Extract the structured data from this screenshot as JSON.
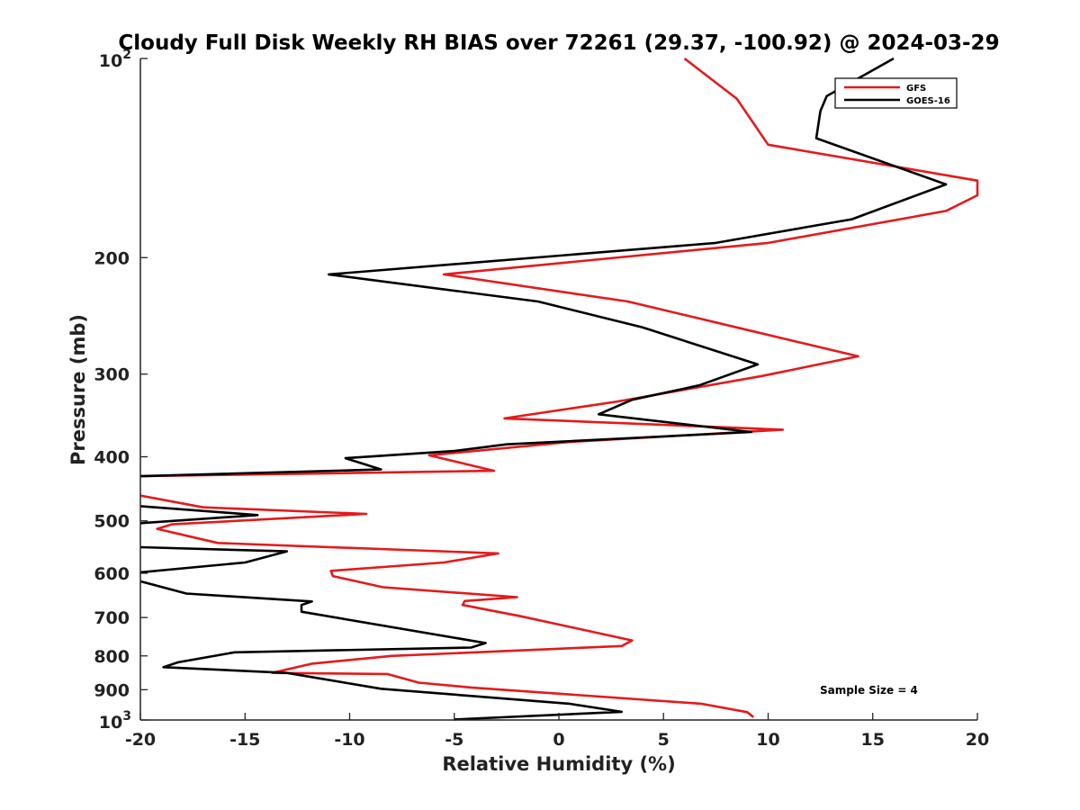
{
  "chart_data": {
    "type": "line",
    "title": "Cloudy Full Disk Weekly RH BIAS over 72261 (29.37, -100.92) @ 2024-03-29",
    "xlabel": "Relative Humidity (%)",
    "ylabel": "Pressure (mb)",
    "xlim": [
      -20,
      20
    ],
    "ylim": [
      100,
      1000
    ],
    "y_scale": "log",
    "y_reversed": true,
    "grid": false,
    "legend_placement": "top-right",
    "x_ticks": [
      "-20",
      "-15",
      "-10",
      "-5",
      "0",
      "5",
      "10",
      "15",
      "20"
    ],
    "y_ticks": [
      {
        "value": 100,
        "label": "10",
        "sup": "2"
      },
      {
        "value": 200,
        "label": "200",
        "sup": ""
      },
      {
        "value": 300,
        "label": "300",
        "sup": ""
      },
      {
        "value": 400,
        "label": "400",
        "sup": ""
      },
      {
        "value": 500,
        "label": "500",
        "sup": ""
      },
      {
        "value": 600,
        "label": "600",
        "sup": ""
      },
      {
        "value": 700,
        "label": "700",
        "sup": ""
      },
      {
        "value": 800,
        "label": "800",
        "sup": ""
      },
      {
        "value": 900,
        "label": "900",
        "sup": ""
      },
      {
        "value": 1000,
        "label": "10",
        "sup": "3"
      }
    ],
    "annotation": "Sample Size = 4",
    "series": [
      {
        "name": "GFS",
        "color": "#e41a1c",
        "points": [
          [
            6.0,
            100
          ],
          [
            8.5,
            115
          ],
          [
            10.0,
            135
          ],
          [
            20.0,
            153
          ],
          [
            20.0,
            161
          ],
          [
            18.5,
            170
          ],
          [
            10.0,
            190
          ],
          [
            -5.5,
            212
          ],
          [
            3.3,
            233
          ],
          [
            8.5,
            255
          ],
          [
            14.3,
            282
          ],
          [
            9.7,
            302
          ],
          [
            2.8,
            330
          ],
          [
            -2.6,
            350
          ],
          [
            10.7,
            364
          ],
          [
            0.5,
            380
          ],
          [
            -6.2,
            398
          ],
          [
            -3.1,
            420
          ],
          [
            -20,
            428
          ],
          [
            null,
            null
          ],
          [
            -20,
            458
          ],
          [
            -17.0,
            477
          ],
          [
            -9.2,
            488
          ],
          [
            -18.5,
            506
          ],
          [
            -19.2,
            514
          ],
          [
            -16.3,
            540
          ],
          [
            -2.9,
            560
          ],
          [
            -5.5,
            578
          ],
          [
            -10.9,
            595
          ],
          [
            -10.8,
            606
          ],
          [
            -8.4,
            630
          ],
          [
            -2.0,
            652
          ],
          [
            -4.5,
            661
          ],
          [
            -4.6,
            670
          ],
          [
            -1.8,
            697
          ],
          [
            3.5,
            758
          ],
          [
            3.0,
            773
          ],
          [
            -8.0,
            800
          ],
          [
            -11.8,
            822
          ],
          [
            -13.7,
            849
          ],
          [
            -8.2,
            852
          ],
          [
            -6.7,
            878
          ],
          [
            -4.2,
            893
          ],
          [
            6.8,
            945
          ],
          [
            9.0,
            973
          ],
          [
            9.3,
            990
          ]
        ]
      },
      {
        "name": "GOES-16",
        "color": "#000000",
        "points": [
          [
            16.0,
            100
          ],
          [
            12.8,
            114
          ],
          [
            12.5,
            120
          ],
          [
            12.3,
            132
          ],
          [
            18.5,
            155
          ],
          [
            14.0,
            175
          ],
          [
            7.5,
            190
          ],
          [
            -11.0,
            212
          ],
          [
            -1.0,
            233
          ],
          [
            4.0,
            255
          ],
          [
            9.5,
            290
          ],
          [
            6.7,
            312
          ],
          [
            3.5,
            328
          ],
          [
            1.9,
            345
          ],
          [
            9.2,
            367
          ],
          [
            -2.5,
            383
          ],
          [
            -5.0,
            392
          ],
          [
            -10.2,
            402
          ],
          [
            -8.5,
            418
          ],
          [
            -20,
            428
          ],
          [
            null,
            null
          ],
          [
            -20,
            475
          ],
          [
            -14.4,
            490
          ],
          [
            -20,
            504
          ],
          [
            null,
            null
          ],
          [
            -20,
            548
          ],
          [
            -13.0,
            556
          ],
          [
            -15.0,
            578
          ],
          [
            -20,
            598
          ],
          [
            null,
            null
          ],
          [
            -20,
            617
          ],
          [
            -17.8,
            644
          ],
          [
            -11.8,
            662
          ],
          [
            -12.3,
            670
          ],
          [
            -12.3,
            686
          ],
          [
            -3.5,
            765
          ],
          [
            -4.2,
            777
          ],
          [
            -15.5,
            790
          ],
          [
            -18.2,
            818
          ],
          [
            -18.9,
            832
          ],
          [
            -13.0,
            849
          ],
          [
            -8.5,
            897
          ],
          [
            0.5,
            945
          ],
          [
            3.0,
            972
          ],
          [
            -5.0,
            998
          ]
        ]
      }
    ]
  }
}
